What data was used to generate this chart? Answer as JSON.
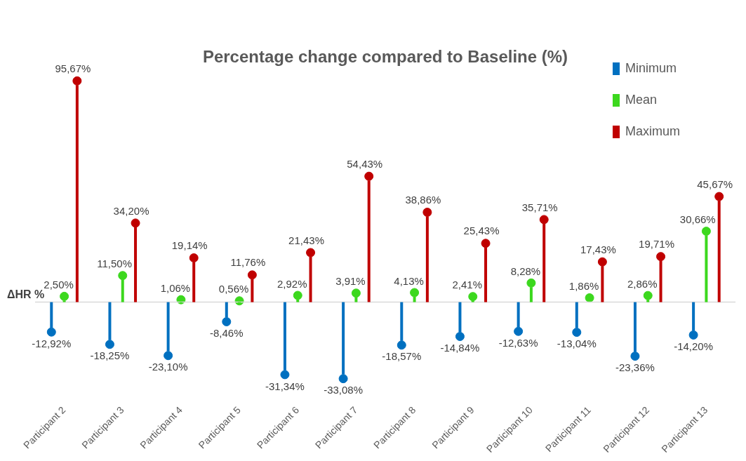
{
  "chart_data": {
    "type": "lollipop",
    "title": "Percentage change compared to Baseline (%)",
    "ylabel": "ΔHR %",
    "categories": [
      "Participant 2",
      "Participant 3",
      "Participant 4",
      "Participant 5",
      "Participant 6",
      "Participant 7",
      "Participant 8",
      "Participant 9",
      "Participant 10",
      "Participant 11",
      "Participant 12",
      "Participant 13"
    ],
    "series": [
      {
        "name": "Minimum",
        "color": "#0070c0",
        "values": [
          -12.92,
          -18.25,
          -23.1,
          -8.46,
          -31.34,
          -33.08,
          -18.57,
          -14.84,
          -12.63,
          -13.04,
          -23.36,
          -14.2
        ],
        "value_labels": [
          "-12,92%",
          "-18,25%",
          "-23,10%",
          "-8,46%",
          "-31,34%",
          "-33,08%",
          "-18,57%",
          "-14,84%",
          "-12,63%",
          "-13,04%",
          "-23,36%",
          "-14,20%"
        ]
      },
      {
        "name": "Mean",
        "color": "#3cd81e",
        "values": [
          2.5,
          11.5,
          1.06,
          0.56,
          2.92,
          3.91,
          4.13,
          2.41,
          8.28,
          1.86,
          2.86,
          30.66
        ],
        "value_labels": [
          "2,50%",
          "11,50%",
          "1,06%",
          "0,56%",
          "2,92%",
          "3,91%",
          "4,13%",
          "2,41%",
          "8,28%",
          "1,86%",
          "2,86%",
          "30,66%"
        ]
      },
      {
        "name": "Maximum",
        "color": "#c00000",
        "values": [
          95.67,
          34.2,
          19.14,
          11.76,
          21.43,
          54.43,
          38.86,
          25.43,
          35.71,
          17.43,
          19.71,
          45.67
        ],
        "value_labels": [
          "95,67%",
          "34,20%",
          "19,14%",
          "11,76%",
          "21,43%",
          "54,43%",
          "38,86%",
          "25,43%",
          "35,71%",
          "17,43%",
          "19,71%",
          "45,67%"
        ]
      }
    ],
    "grid": false,
    "legend": "top right",
    "tick_labels": "x",
    "marker": "circle"
  }
}
